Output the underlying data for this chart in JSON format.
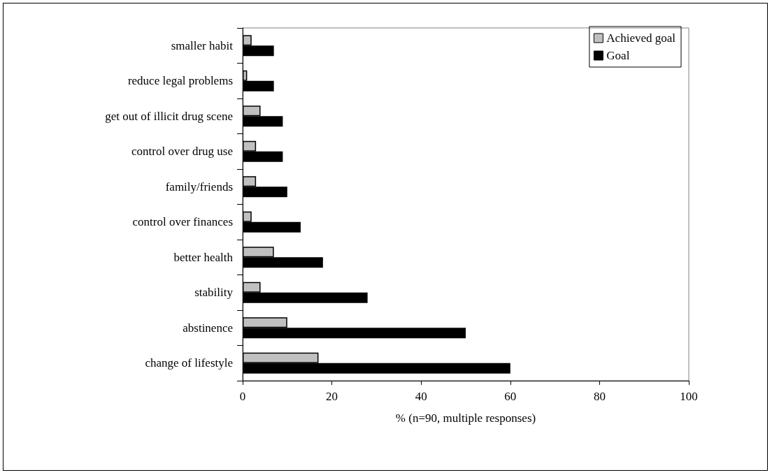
{
  "chart_data": {
    "type": "bar",
    "orientation": "horizontal",
    "xlabel": "% (n=90, multiple responses)",
    "categories": [
      "smaller habit",
      "reduce legal problems",
      "get out of illicit drug scene",
      "control over drug use",
      "family/friends",
      "control over finances",
      "better health",
      "stability",
      "abstinence",
      "change of lifestyle"
    ],
    "series": [
      {
        "name": "Achieved goal",
        "color": "#c0c0c0",
        "values": [
          2,
          1,
          4,
          3,
          3,
          2,
          7,
          4,
          10,
          17
        ]
      },
      {
        "name": "Goal",
        "color": "#000000",
        "values": [
          7,
          7,
          9,
          9,
          10,
          13,
          18,
          28,
          50,
          60
        ]
      }
    ],
    "xlim": [
      0,
      100
    ],
    "xticks": [
      0,
      20,
      40,
      60,
      80,
      100
    ],
    "grid": false,
    "legend": "top right"
  }
}
